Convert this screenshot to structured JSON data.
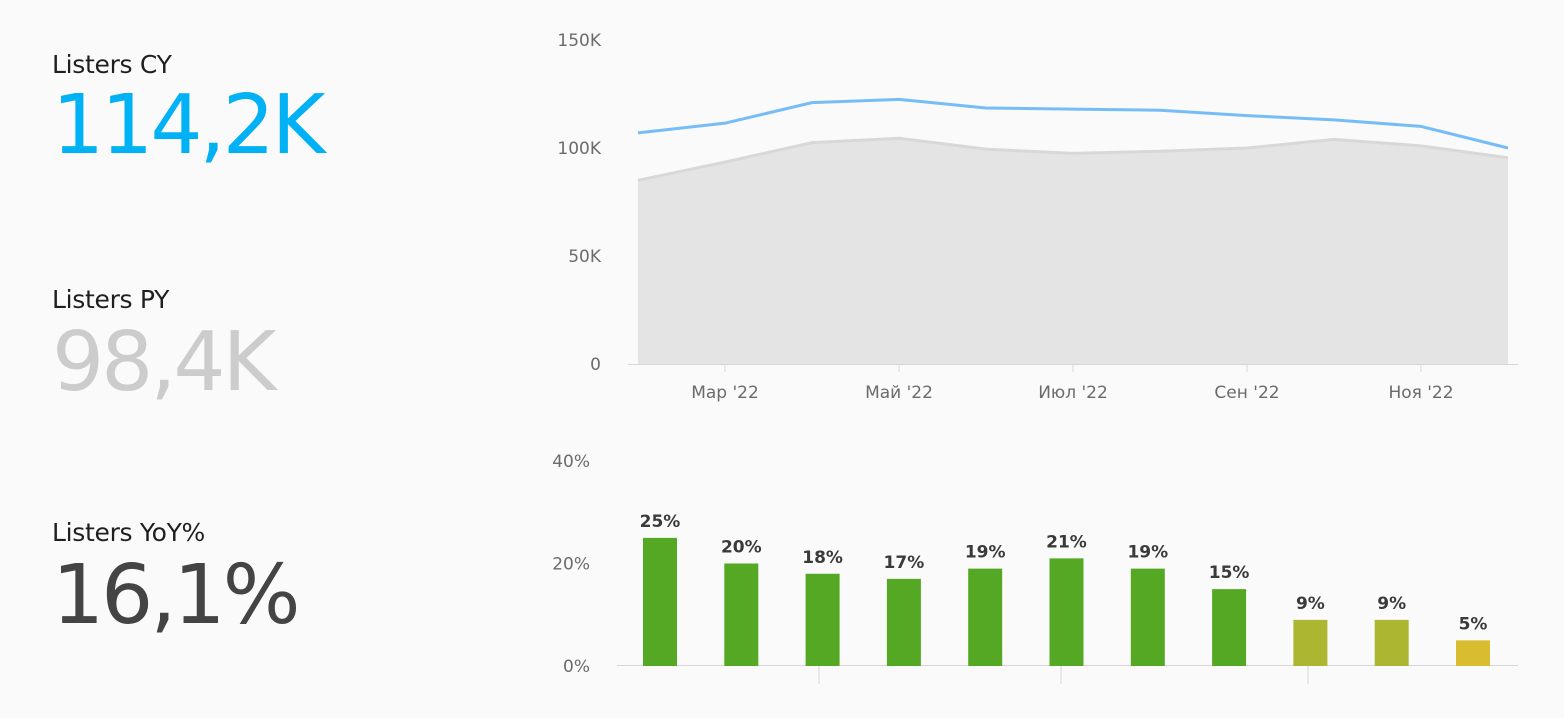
{
  "kpis": [
    {
      "label": "Listers CY",
      "value": "114,2K",
      "color": "#00b2f5"
    },
    {
      "label": "Listers PY",
      "value": "98,4K",
      "color": "#cccccc"
    },
    {
      "label": "Listers YoY%",
      "value": "16,1%",
      "color": "#444444"
    }
  ],
  "chart_data": [
    {
      "type": "area",
      "title": "",
      "xlabel": "",
      "ylabel": "",
      "x_tick_labels": [
        "Мар '22",
        "Май '22",
        "Июл '22",
        "Сен '22",
        "Ноя '22"
      ],
      "y_tick_labels": [
        "150K",
        "100K",
        "50K",
        "0"
      ],
      "ylim": [
        0,
        150000
      ],
      "grid": false,
      "series": [
        {
          "kind": "line",
          "color": "#76bdf7",
          "values": [
            107000,
            111500,
            121000,
            122500,
            118500,
            118000,
            117500,
            115000,
            113000,
            110000,
            100000
          ]
        },
        {
          "kind": "area",
          "color": "#e4e4e4",
          "line_color": "#d8d8d8",
          "values": [
            85000,
            93500,
            102500,
            104500,
            99500,
            97500,
            98500,
            100000,
            104000,
            101000,
            95500
          ]
        }
      ]
    },
    {
      "type": "bar",
      "title": "",
      "xlabel": "",
      "ylabel": "",
      "y_tick_labels": [
        "40%",
        "20%",
        "0%"
      ],
      "ylim": [
        0,
        40
      ],
      "grid": false,
      "values": [
        25,
        20,
        18,
        17,
        19,
        21,
        19,
        15,
        9,
        9,
        5
      ],
      "value_labels": [
        "25%",
        "20%",
        "18%",
        "17%",
        "19%",
        "21%",
        "19%",
        "15%",
        "9%",
        "9%",
        "5%"
      ],
      "colors": [
        "#55a823",
        "#55a823",
        "#55a823",
        "#55a823",
        "#55a823",
        "#55a823",
        "#55a823",
        "#55a823",
        "#adb631",
        "#adb631",
        "#d9bd30"
      ]
    }
  ]
}
